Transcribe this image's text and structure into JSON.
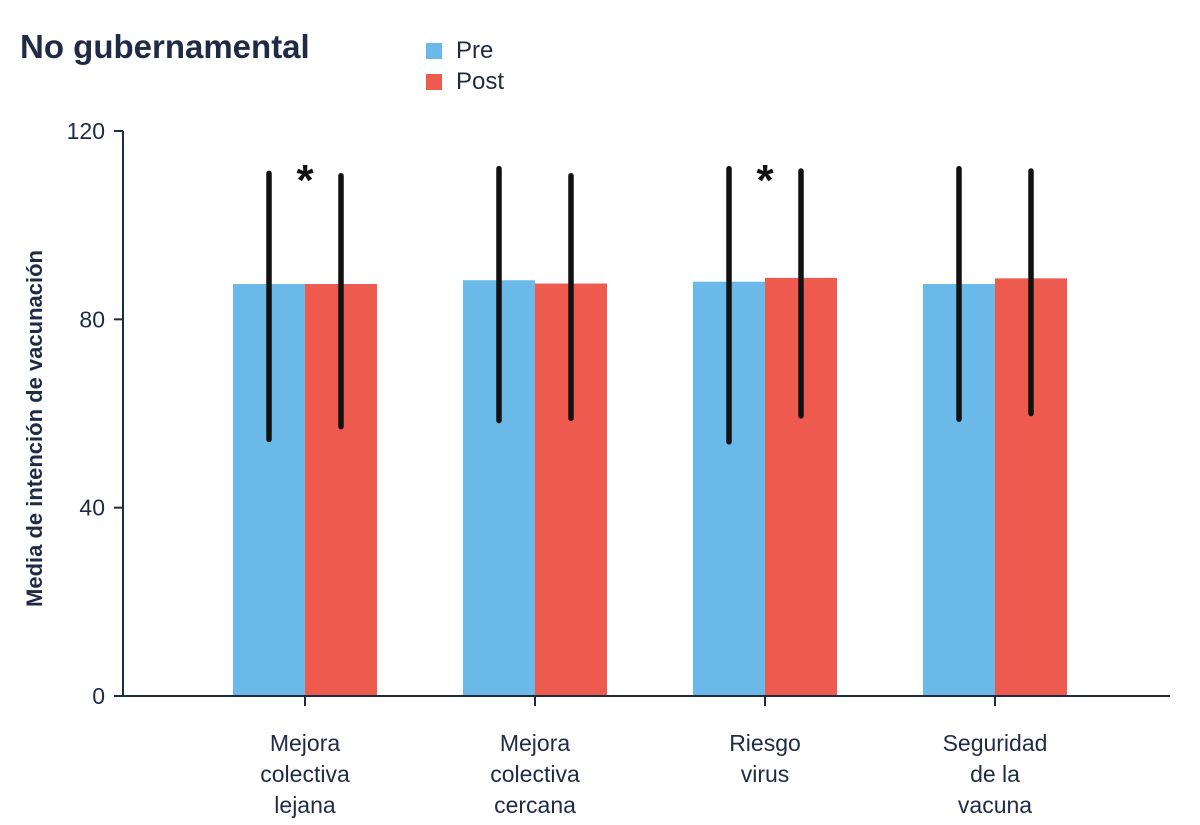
{
  "chart_data": {
    "type": "bar",
    "title": "No gubernamental",
    "ylabel": "Media de intención de vacunación",
    "xlabel": "",
    "ylim": [
      0,
      120
    ],
    "yticks": [
      0,
      40,
      80,
      120
    ],
    "categories": [
      [
        "Mejora",
        "colectiva",
        "lejana"
      ],
      [
        "Mejora",
        "colectiva",
        "cercana"
      ],
      [
        "Riesgo",
        "virus"
      ],
      [
        "Seguridad",
        "de la",
        "vacuna"
      ]
    ],
    "series": [
      {
        "name": "Pre",
        "color": "#6bb9e8",
        "values": [
          87.5,
          88.3,
          88.0,
          87.5
        ],
        "err_low": [
          54.5,
          58.5,
          54.0,
          58.8
        ],
        "err_high": [
          111.0,
          112.0,
          112.0,
          112.0
        ]
      },
      {
        "name": "Post",
        "color": "#ee5a4e",
        "values": [
          87.5,
          87.6,
          88.8,
          88.7
        ],
        "err_low": [
          57.2,
          59.0,
          59.5,
          60.0
        ],
        "err_high": [
          110.5,
          110.5,
          111.5,
          111.5
        ]
      }
    ],
    "significance": [
      true,
      false,
      true,
      false
    ],
    "significance_marker": "*",
    "legend_position": "top-center",
    "grid": false
  }
}
